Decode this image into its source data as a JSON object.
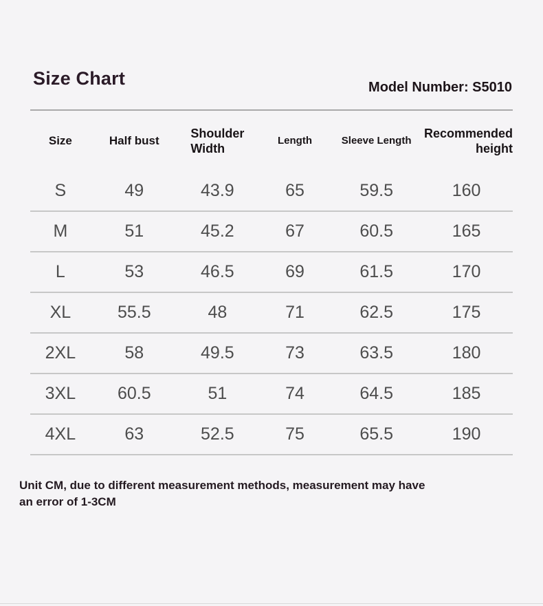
{
  "header": {
    "title": "Size Chart",
    "model_number": "Model Number: S5010"
  },
  "table": {
    "headers": {
      "size": "Size",
      "half_bust": "Half bust",
      "shoulder_width_line1": "Shoulder",
      "shoulder_width_line2": "Width",
      "length": "Length",
      "sleeve_length": "Sleeve Length",
      "recommended_line1": "Recommended",
      "recommended_line2": "height"
    },
    "rows": [
      {
        "size": "S",
        "half_bust": "49",
        "shoulder_width": "43.9",
        "length": "65",
        "sleeve_length": "59.5",
        "recommended_height": "160"
      },
      {
        "size": "M",
        "half_bust": "51",
        "shoulder_width": "45.2",
        "length": "67",
        "sleeve_length": "60.5",
        "recommended_height": "165"
      },
      {
        "size": "L",
        "half_bust": "53",
        "shoulder_width": "46.5",
        "length": "69",
        "sleeve_length": "61.5",
        "recommended_height": "170"
      },
      {
        "size": "XL",
        "half_bust": "55.5",
        "shoulder_width": "48",
        "length": "71",
        "sleeve_length": "62.5",
        "recommended_height": "175"
      },
      {
        "size": "2XL",
        "half_bust": "58",
        "shoulder_width": "49.5",
        "length": "73",
        "sleeve_length": "63.5",
        "recommended_height": "180"
      },
      {
        "size": "3XL",
        "half_bust": "60.5",
        "shoulder_width": "51",
        "length": "74",
        "sleeve_length": "64.5",
        "recommended_height": "185"
      },
      {
        "size": "4XL",
        "half_bust": "63",
        "shoulder_width": "52.5",
        "length": "75",
        "sleeve_length": "65.5",
        "recommended_height": "190"
      }
    ]
  },
  "footer": {
    "note_line1": "Unit CM, due to different measurement methods, measurement may have",
    "note_line2": "an error of 1-3CM"
  },
  "colors": {
    "background": "#f5f4f6",
    "title_text": "#2b1b28",
    "header_text": "#191417",
    "data_text": "#4d4d4d",
    "divider": "#a9a9a9",
    "row_separator": "#c7c7c7"
  },
  "chart_data": {
    "type": "table",
    "title": "Size Chart",
    "subtitle": "Model Number: S5010",
    "unit_note": "Unit CM, due to different measurement methods, measurement may have an error of 1-3CM",
    "columns": [
      "Size",
      "Half bust",
      "Shoulder Width",
      "Length",
      "Sleeve Length",
      "Recommended height"
    ],
    "rows": [
      [
        "S",
        49,
        43.9,
        65,
        59.5,
        160
      ],
      [
        "M",
        51,
        45.2,
        67,
        60.5,
        165
      ],
      [
        "L",
        53,
        46.5,
        69,
        61.5,
        170
      ],
      [
        "XL",
        55.5,
        48,
        71,
        62.5,
        175
      ],
      [
        "2XL",
        58,
        49.5,
        73,
        63.5,
        180
      ],
      [
        "3XL",
        60.5,
        51,
        74,
        64.5,
        185
      ],
      [
        "4XL",
        63,
        52.5,
        75,
        65.5,
        190
      ]
    ]
  }
}
